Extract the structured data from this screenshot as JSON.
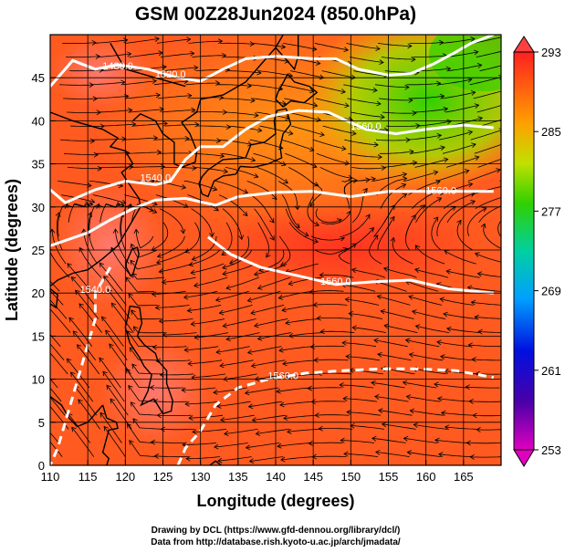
{
  "chart_data": {
    "type": "heatmap",
    "title": "GSM 00Z28Jun2024 (850.0hPa)",
    "xlabel": "Longitude (degrees)",
    "ylabel": "Latitude  (degrees)",
    "xlim": [
      110,
      170
    ],
    "ylim": [
      0,
      50
    ],
    "xticks": [
      110,
      115,
      120,
      125,
      130,
      135,
      140,
      145,
      150,
      155,
      160,
      165
    ],
    "yticks": [
      0,
      5,
      10,
      15,
      20,
      25,
      30,
      35,
      40,
      45
    ],
    "grid": true,
    "colorbar": {
      "min": 253,
      "max": 293,
      "ticks": [
        293,
        285,
        277,
        269,
        261,
        253
      ]
    },
    "contours": [
      {
        "label": "1480.0",
        "lon": 119,
        "lat": 46
      },
      {
        "label": "1520.0",
        "lon": 126,
        "lat": 45
      },
      {
        "label": "1540.0",
        "lon": 124,
        "lat": 33
      },
      {
        "label": "1560.0",
        "lon": 152,
        "lat": 39
      },
      {
        "label": "1560.0",
        "lon": 162,
        "lat": 31.5
      },
      {
        "label": "1560.0",
        "lon": 148,
        "lat": 21
      },
      {
        "label": "1560.0",
        "lon": 141,
        "lat": 10
      },
      {
        "label": "1540.0",
        "lon": 116,
        "lat": 20
      }
    ]
  },
  "credits": {
    "line1": "Drawing by DCL (https://www.gfd-dennou.org/library/dcl/)",
    "line2": "Data from http://database.rish.kyoto-u.ac.jp/arch/jmadata/"
  }
}
